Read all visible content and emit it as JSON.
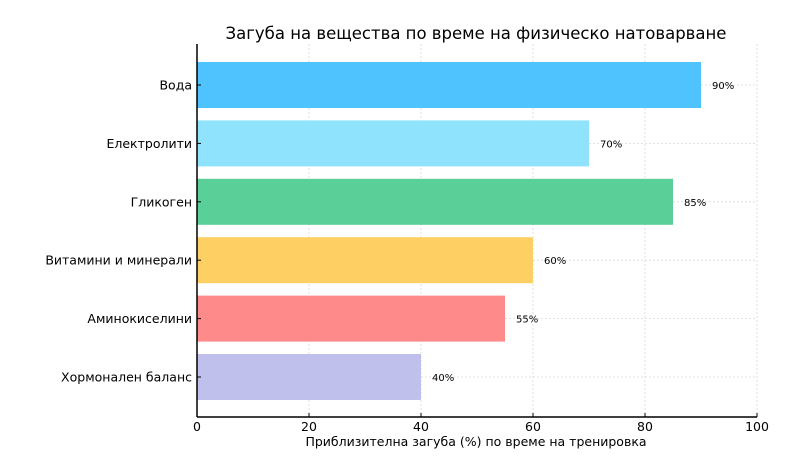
{
  "chart_data": {
    "type": "bar",
    "orientation": "horizontal",
    "title": "Загуба на вещества по време на физическо натоварване",
    "xlabel": "Приблизителна загуба (%) по време на тренировка",
    "ylabel": "",
    "xlim": [
      0,
      100
    ],
    "xticks": [
      "0",
      "20",
      "40",
      "60",
      "80",
      "100"
    ],
    "grid": true,
    "categories": [
      "Вода",
      "Електролити",
      "Гликоген",
      "Витамини и минерали",
      "Аминокиселини",
      "Хормонален баланс"
    ],
    "values": [
      90,
      70,
      85,
      60,
      55,
      40
    ],
    "data_labels": [
      "90%",
      "70%",
      "85%",
      "60%",
      "55%",
      "40%"
    ],
    "colors": [
      "#4fc3fd",
      "#8fe3fd",
      "#5acf97",
      "#fed064",
      "#fe8a8a",
      "#c0c0ed"
    ]
  }
}
